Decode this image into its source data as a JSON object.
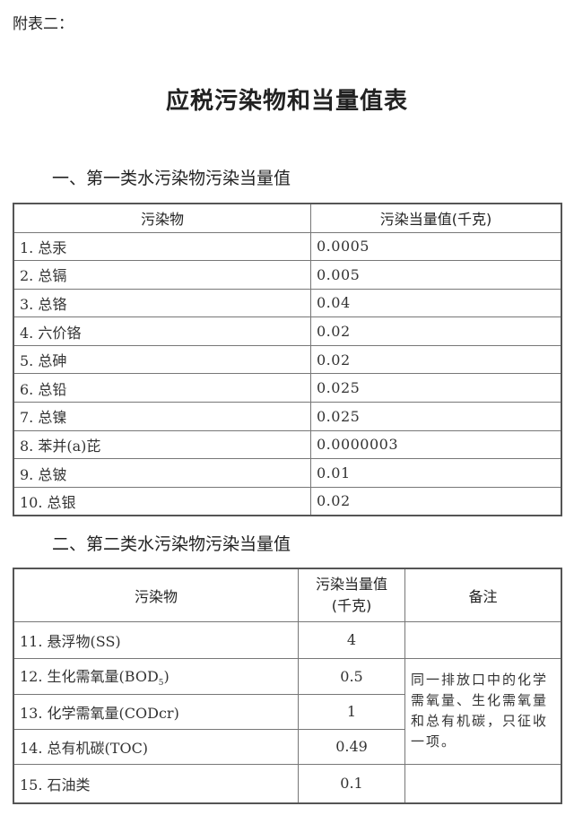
{
  "annex_label": "附表二：",
  "title": "应税污染物和当量值表",
  "section1": {
    "heading": "一、第一类水污染物污染当量值",
    "headers": [
      "污染物",
      "污染当量值(千克)"
    ],
    "rows": [
      {
        "name": "1. 总汞",
        "value": "0.0005"
      },
      {
        "name": "2. 总镉",
        "value": "0.005"
      },
      {
        "name": "3. 总铬",
        "value": "0.04"
      },
      {
        "name": "4. 六价铬",
        "value": "0.02"
      },
      {
        "name": "5. 总砷",
        "value": "0.02"
      },
      {
        "name": "6. 总铅",
        "value": "0.025"
      },
      {
        "name": "7. 总镍",
        "value": "0.025"
      },
      {
        "name": "8. 苯并(a)芘",
        "value": "0.0000003"
      },
      {
        "name": "9. 总铍",
        "value": "0.01"
      },
      {
        "name": "10. 总银",
        "value": "0.02"
      }
    ]
  },
  "section2": {
    "heading": "二、第二类水污染物污染当量值",
    "headers": [
      "污染物",
      "污染当量值",
      "(千克)",
      "备注"
    ],
    "rows": [
      {
        "name": "11. 悬浮物(SS)",
        "value": "4"
      },
      {
        "name": "12. 生化需氧量(BOD",
        "name_sub": "5",
        "name_end": ")",
        "value": "0.5"
      },
      {
        "name": "13. 化学需氧量(CODcr)",
        "value": "1"
      },
      {
        "name": "14. 总有机碳(TOC)",
        "value": "0.49"
      },
      {
        "name": "15. 石油类",
        "value": "0.1"
      }
    ],
    "note": "同一排放口中的化学需氧量、生化需氧量和总有机碳，只征收一项。"
  }
}
